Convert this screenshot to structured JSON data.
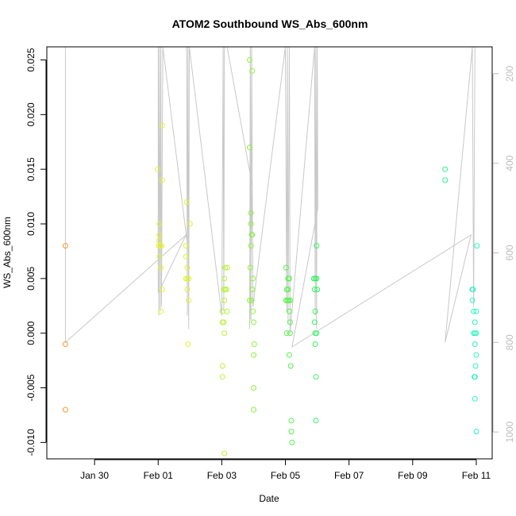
{
  "chart_data": {
    "type": "scatter",
    "title": "ATOM2 Southbound WS_Abs_600nm",
    "xlabel": "Date",
    "ylabel": "WS_Abs_600nm",
    "x_ticks": [
      {
        "value": "2017-01-30",
        "label": "Jan 30"
      },
      {
        "value": "2017-02-01",
        "label": "Feb 01"
      },
      {
        "value": "2017-02-03",
        "label": "Feb 03"
      },
      {
        "value": "2017-02-05",
        "label": "Feb 05"
      },
      {
        "value": "2017-02-07",
        "label": "Feb 07"
      },
      {
        "value": "2017-02-09",
        "label": "Feb 09"
      },
      {
        "value": "2017-02-11",
        "label": "Feb 11"
      }
    ],
    "xlim": [
      "2017-01-28T12:00",
      "2017-02-11T12:00"
    ],
    "ylim": [
      -0.0115,
      0.0262
    ],
    "y_ticks": [
      {
        "value": -0.01,
        "label": "-0.010"
      },
      {
        "value": -0.005,
        "label": "-0.005"
      },
      {
        "value": 0.0,
        "label": "0.000"
      },
      {
        "value": 0.005,
        "label": "0.005"
      },
      {
        "value": 0.01,
        "label": "0.010"
      },
      {
        "value": 0.015,
        "label": "0.015"
      },
      {
        "value": 0.02,
        "label": "0.020"
      },
      {
        "value": 0.025,
        "label": "0.025"
      }
    ],
    "right_axis": {
      "color": "#bdbdbd",
      "lim": [
        1060,
        140
      ],
      "ticks": [
        {
          "value": 200,
          "label": "200"
        },
        {
          "value": 400,
          "label": "400"
        },
        {
          "value": 600,
          "label": "600"
        },
        {
          "value": 800,
          "label": "800"
        },
        {
          "value": 1000,
          "label": "1000"
        }
      ]
    },
    "grid": false,
    "points": [
      {
        "x": "2017-01-29T02:00",
        "y": 0.008,
        "color": "#f59a2e"
      },
      {
        "x": "2017-01-29T02:00",
        "y": -0.001,
        "color": "#f59a2e"
      },
      {
        "x": "2017-01-29T02:00",
        "y": -0.007,
        "color": "#f59a2e"
      },
      {
        "x": "2017-01-31T23:30",
        "y": 0.015,
        "color": "#e5f23a"
      },
      {
        "x": "2017-02-01T01:00",
        "y": 0.01,
        "color": "#e5f23a"
      },
      {
        "x": "2017-02-01T01:00",
        "y": 0.009,
        "color": "#e5f23a"
      },
      {
        "x": "2017-02-01T00:30",
        "y": 0.0085,
        "color": "#e5f23a"
      },
      {
        "x": "2017-02-01T00:30",
        "y": 0.008,
        "color": "#e5f23a"
      },
      {
        "x": "2017-02-01T01:30",
        "y": 0.008,
        "color": "#e5f23a"
      },
      {
        "x": "2017-02-01T02:30",
        "y": 0.008,
        "color": "#e5f23a"
      },
      {
        "x": "2017-02-01T01:00",
        "y": 0.007,
        "color": "#e5f23a"
      },
      {
        "x": "2017-02-01T02:00",
        "y": 0.006,
        "color": "#e5f23a"
      },
      {
        "x": "2017-02-01T03:00",
        "y": 0.004,
        "color": "#e5f23a"
      },
      {
        "x": "2017-02-01T02:00",
        "y": 0.002,
        "color": "#e5f23a"
      },
      {
        "x": "2017-02-01T03:00",
        "y": 0.014,
        "color": "#e5f23a"
      },
      {
        "x": "2017-02-01T03:00",
        "y": 0.019,
        "color": "#e5f23a"
      },
      {
        "x": "2017-02-01T21:30",
        "y": 0.012,
        "color": "#e0f235"
      },
      {
        "x": "2017-02-01T21:00",
        "y": 0.008,
        "color": "#e0f235"
      },
      {
        "x": "2017-02-01T21:00",
        "y": 0.007,
        "color": "#e0f235"
      },
      {
        "x": "2017-02-01T22:00",
        "y": 0.006,
        "color": "#e0f235"
      },
      {
        "x": "2017-02-01T21:00",
        "y": 0.005,
        "color": "#e0f235"
      },
      {
        "x": "2017-02-01T22:00",
        "y": 0.005,
        "color": "#e0f235"
      },
      {
        "x": "2017-02-01T23:00",
        "y": 0.005,
        "color": "#e0f235"
      },
      {
        "x": "2017-02-01T22:00",
        "y": 0.004,
        "color": "#e0f235"
      },
      {
        "x": "2017-02-01T23:00",
        "y": 0.003,
        "color": "#e0f235"
      },
      {
        "x": "2017-02-01T22:30",
        "y": -0.001,
        "color": "#e0f235"
      },
      {
        "x": "2017-02-02T00:00",
        "y": 0.01,
        "color": "#e0f235"
      },
      {
        "x": "2017-02-03T00:30",
        "y": 0.002,
        "color": "#b7f23a"
      },
      {
        "x": "2017-02-03T00:30",
        "y": 0.001,
        "color": "#b7f23a"
      },
      {
        "x": "2017-02-03T01:30",
        "y": 0.001,
        "color": "#b7f23a"
      },
      {
        "x": "2017-02-03T02:00",
        "y": 0.0,
        "color": "#b7f23a"
      },
      {
        "x": "2017-02-03T02:00",
        "y": 0.003,
        "color": "#b7f23a"
      },
      {
        "x": "2017-02-03T01:30",
        "y": 0.004,
        "color": "#b7f23a"
      },
      {
        "x": "2017-02-03T02:30",
        "y": 0.004,
        "color": "#b7f23a"
      },
      {
        "x": "2017-02-03T03:30",
        "y": 0.004,
        "color": "#b7f23a"
      },
      {
        "x": "2017-02-03T02:00",
        "y": 0.005,
        "color": "#b7f23a"
      },
      {
        "x": "2017-02-03T02:30",
        "y": 0.006,
        "color": "#b7f23a"
      },
      {
        "x": "2017-02-03T04:00",
        "y": 0.006,
        "color": "#b7f23a"
      },
      {
        "x": "2017-02-03T04:00",
        "y": 0.002,
        "color": "#b7f23a"
      },
      {
        "x": "2017-02-03T00:30",
        "y": -0.003,
        "color": "#b7f23a"
      },
      {
        "x": "2017-02-03T00:30",
        "y": -0.004,
        "color": "#b7f23a"
      },
      {
        "x": "2017-02-03T02:00",
        "y": -0.011,
        "color": "#b7f23a"
      },
      {
        "x": "2017-02-03T21:00",
        "y": 0.025,
        "color": "#8ef23c"
      },
      {
        "x": "2017-02-03T23:00",
        "y": 0.024,
        "color": "#8ef23c"
      },
      {
        "x": "2017-02-03T21:00",
        "y": 0.017,
        "color": "#8ef23c"
      },
      {
        "x": "2017-02-03T22:00",
        "y": 0.011,
        "color": "#8ef23c"
      },
      {
        "x": "2017-02-03T22:00",
        "y": 0.01,
        "color": "#8ef23c"
      },
      {
        "x": "2017-02-03T23:00",
        "y": 0.009,
        "color": "#8ef23c"
      },
      {
        "x": "2017-02-03T22:30",
        "y": 0.009,
        "color": "#8ef23c"
      },
      {
        "x": "2017-02-03T22:00",
        "y": 0.008,
        "color": "#8ef23c"
      },
      {
        "x": "2017-02-03T21:30",
        "y": 0.006,
        "color": "#8ef23c"
      },
      {
        "x": "2017-02-03T23:30",
        "y": 0.005,
        "color": "#8ef23c"
      },
      {
        "x": "2017-02-03T23:00",
        "y": 0.004,
        "color": "#8ef23c"
      },
      {
        "x": "2017-02-03T21:00",
        "y": 0.003,
        "color": "#8ef23c"
      },
      {
        "x": "2017-02-03T22:30",
        "y": 0.003,
        "color": "#8ef23c"
      },
      {
        "x": "2017-02-03T23:30",
        "y": 0.002,
        "color": "#8ef23c"
      },
      {
        "x": "2017-02-04T00:00",
        "y": 0.001,
        "color": "#8ef23c"
      },
      {
        "x": "2017-02-04T00:30",
        "y": -0.001,
        "color": "#8ef23c"
      },
      {
        "x": "2017-02-04T00:00",
        "y": -0.002,
        "color": "#8ef23c"
      },
      {
        "x": "2017-02-04T00:00",
        "y": -0.005,
        "color": "#8ef23c"
      },
      {
        "x": "2017-02-04T00:00",
        "y": -0.007,
        "color": "#8ef23c"
      },
      {
        "x": "2017-02-05T00:30",
        "y": 0.006,
        "color": "#55f24a"
      },
      {
        "x": "2017-02-05T01:00",
        "y": 0.004,
        "color": "#55f24a"
      },
      {
        "x": "2017-02-05T02:00",
        "y": 0.005,
        "color": "#55f24a"
      },
      {
        "x": "2017-02-05T03:00",
        "y": 0.005,
        "color": "#55f24a"
      },
      {
        "x": "2017-02-05T00:30",
        "y": 0.003,
        "color": "#55f24a"
      },
      {
        "x": "2017-02-05T01:30",
        "y": 0.003,
        "color": "#55f24a"
      },
      {
        "x": "2017-02-05T02:30",
        "y": 0.003,
        "color": "#55f24a"
      },
      {
        "x": "2017-02-05T03:30",
        "y": 0.003,
        "color": "#55f24a"
      },
      {
        "x": "2017-02-05T02:00",
        "y": 0.004,
        "color": "#55f24a"
      },
      {
        "x": "2017-02-05T03:00",
        "y": 0.002,
        "color": "#55f24a"
      },
      {
        "x": "2017-02-05T03:30",
        "y": 0.001,
        "color": "#55f24a"
      },
      {
        "x": "2017-02-05T01:00",
        "y": 0.0,
        "color": "#55f24a"
      },
      {
        "x": "2017-02-05T03:30",
        "y": 0.0,
        "color": "#55f24a"
      },
      {
        "x": "2017-02-05T03:00",
        "y": -0.002,
        "color": "#55f24a"
      },
      {
        "x": "2017-02-05T04:00",
        "y": -0.003,
        "color": "#55f24a"
      },
      {
        "x": "2017-02-05T04:30",
        "y": -0.008,
        "color": "#55f24a"
      },
      {
        "x": "2017-02-05T04:30",
        "y": -0.009,
        "color": "#55f24a"
      },
      {
        "x": "2017-02-05T05:00",
        "y": -0.01,
        "color": "#55f24a"
      },
      {
        "x": "2017-02-05T21:30",
        "y": 0.005,
        "color": "#36f262"
      },
      {
        "x": "2017-02-05T22:30",
        "y": 0.005,
        "color": "#36f262"
      },
      {
        "x": "2017-02-05T23:30",
        "y": 0.005,
        "color": "#36f262"
      },
      {
        "x": "2017-02-05T22:00",
        "y": 0.004,
        "color": "#36f262"
      },
      {
        "x": "2017-02-06T00:00",
        "y": 0.004,
        "color": "#36f262"
      },
      {
        "x": "2017-02-05T23:30",
        "y": 0.008,
        "color": "#36f262"
      },
      {
        "x": "2017-02-05T22:30",
        "y": 0.002,
        "color": "#36f262"
      },
      {
        "x": "2017-02-05T22:00",
        "y": 0.001,
        "color": "#36f262"
      },
      {
        "x": "2017-02-05T22:30",
        "y": 0.0,
        "color": "#36f262"
      },
      {
        "x": "2017-02-05T23:30",
        "y": 0.0,
        "color": "#36f262"
      },
      {
        "x": "2017-02-05T22:30",
        "y": -0.001,
        "color": "#36f262"
      },
      {
        "x": "2017-02-05T23:00",
        "y": -0.004,
        "color": "#36f262"
      },
      {
        "x": "2017-02-05T23:00",
        "y": -0.008,
        "color": "#36f262"
      },
      {
        "x": "2017-02-10T00:30",
        "y": 0.015,
        "color": "#2af28f"
      },
      {
        "x": "2017-02-10T00:30",
        "y": 0.014,
        "color": "#2af28f"
      },
      {
        "x": "2017-02-10T21:00",
        "y": 0.004,
        "color": "#2ef2c2"
      },
      {
        "x": "2017-02-10T21:30",
        "y": 0.004,
        "color": "#2ef2c2"
      },
      {
        "x": "2017-02-10T21:00",
        "y": 0.003,
        "color": "#2ef2c2"
      },
      {
        "x": "2017-02-10T22:00",
        "y": 0.002,
        "color": "#2ef2c2"
      },
      {
        "x": "2017-02-11T00:00",
        "y": 0.002,
        "color": "#2ef2c2"
      },
      {
        "x": "2017-02-10T23:00",
        "y": 0.001,
        "color": "#2ef2c2"
      },
      {
        "x": "2017-02-10T22:00",
        "y": 0.0,
        "color": "#2ef2c2"
      },
      {
        "x": "2017-02-10T23:00",
        "y": 0.0,
        "color": "#2ef2c2"
      },
      {
        "x": "2017-02-11T00:00",
        "y": 0.0,
        "color": "#2ef2c2"
      },
      {
        "x": "2017-02-10T23:00",
        "y": -0.001,
        "color": "#2ef2c2"
      },
      {
        "x": "2017-02-11T00:00",
        "y": -0.002,
        "color": "#2ef2c2"
      },
      {
        "x": "2017-02-10T23:30",
        "y": -0.003,
        "color": "#2ef2c2"
      },
      {
        "x": "2017-02-10T22:30",
        "y": -0.004,
        "color": "#2ef2c2"
      },
      {
        "x": "2017-02-10T23:00",
        "y": -0.004,
        "color": "#2ef2c2"
      },
      {
        "x": "2017-02-10T23:00",
        "y": -0.006,
        "color": "#2ef2c2"
      },
      {
        "x": "2017-02-11T00:00",
        "y": -0.009,
        "color": "#2ef2c2"
      },
      {
        "x": "2017-02-11T00:30",
        "y": 0.008,
        "color": "#2ef2c2"
      }
    ],
    "altitude_track": {
      "color": "#c8c8c8",
      "axis": "right",
      "points": [
        [
          "2017-01-29T02:00",
          140
        ],
        [
          "2017-01-29T02:00",
          800
        ],
        [
          "2017-02-01T21:00",
          560
        ],
        [
          "2017-02-01T00:00",
          690
        ],
        [
          "2017-02-01T00:00",
          140
        ],
        [
          "2017-02-01T00:30",
          740
        ],
        [
          "2017-02-01T01:00",
          140
        ],
        [
          "2017-02-01T01:30",
          730
        ],
        [
          "2017-02-01T02:00",
          140
        ],
        [
          "2017-02-01T02:30",
          720
        ],
        [
          "2017-02-01T03:30",
          140
        ],
        [
          "2017-02-01T22:00",
          580
        ],
        [
          "2017-02-01T21:30",
          140
        ],
        [
          "2017-02-01T22:00",
          740
        ],
        [
          "2017-02-01T22:30",
          140
        ],
        [
          "2017-02-01T23:00",
          770
        ],
        [
          "2017-02-01T23:30",
          140
        ],
        [
          "2017-02-03T00:00",
          740
        ],
        [
          "2017-02-03T01:00",
          140
        ],
        [
          "2017-02-03T01:30",
          730
        ],
        [
          "2017-02-03T02:00",
          140
        ],
        [
          "2017-02-03T04:00",
          140
        ],
        [
          "2017-02-03T23:00",
          450
        ],
        [
          "2017-02-03T21:00",
          770
        ],
        [
          "2017-02-03T21:30",
          140
        ],
        [
          "2017-02-03T22:00",
          750
        ],
        [
          "2017-02-03T22:30",
          140
        ],
        [
          "2017-02-03T23:30",
          720
        ],
        [
          "2017-02-05T00:00",
          140
        ],
        [
          "2017-02-05T01:00",
          730
        ],
        [
          "2017-02-05T01:30",
          140
        ],
        [
          "2017-02-05T02:00",
          760
        ],
        [
          "2017-02-05T03:00",
          140
        ],
        [
          "2017-02-05T03:30",
          780
        ],
        [
          "2017-02-05T22:00",
          140
        ],
        [
          "2017-02-05T22:30",
          740
        ],
        [
          "2017-02-05T23:00",
          140
        ],
        [
          "2017-02-05T23:30",
          770
        ],
        [
          "2017-02-06T00:00",
          140
        ],
        [
          "2017-02-06T00:30",
          500
        ],
        [
          "2017-02-05T05:00",
          810
        ],
        [
          "2017-02-10T20:00",
          560
        ],
        [
          "2017-02-10T00:30",
          800
        ],
        [
          "2017-02-10T21:00",
          140
        ],
        [
          "2017-02-10T22:00",
          720
        ],
        [
          "2017-02-10T23:00",
          140
        ],
        [
          "2017-02-11T00:00",
          140
        ]
      ]
    }
  }
}
